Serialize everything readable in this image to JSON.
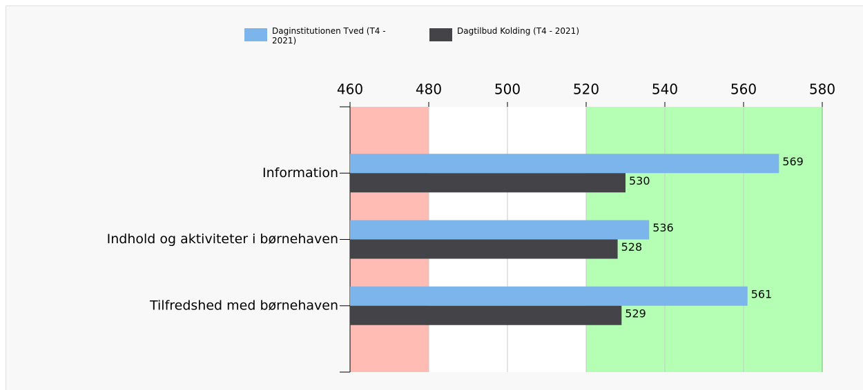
{
  "chart_data": {
    "type": "barh",
    "categories": [
      "Information",
      "Indhold og aktiviteter i børnehaven",
      "Tilfredshed med børnehaven"
    ],
    "series": [
      {
        "name": "Daginstitutionen Tved (T4 - 2021)",
        "color": "#7cb4ec",
        "values": [
          569,
          536,
          561
        ]
      },
      {
        "name": "Dagtilbud Kolding (T4 - 2021)",
        "color": "#434348",
        "values": [
          530,
          528,
          529
        ]
      }
    ],
    "xlim": [
      460,
      580
    ],
    "xticks": [
      460,
      480,
      500,
      520,
      540,
      560,
      580
    ],
    "grid": true,
    "bands": [
      {
        "from": 460,
        "to": 480,
        "color": "#ffbcb4"
      },
      {
        "from": 520,
        "to": 580,
        "color": "#b4ffb4"
      }
    ]
  }
}
